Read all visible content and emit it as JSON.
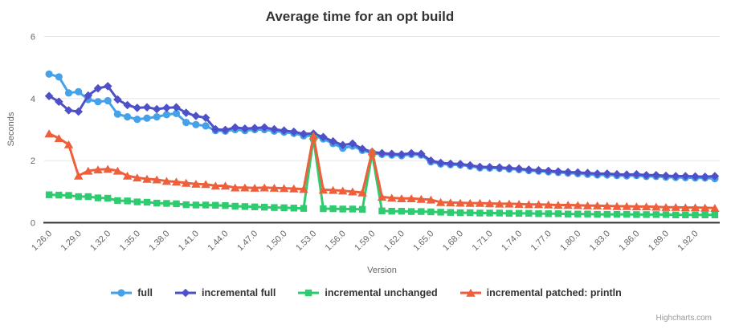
{
  "credits": "Highcharts.com",
  "colors": {
    "grid": "#e6e6e6",
    "axis_line": "#35353f",
    "tick_label": "#666666",
    "title_color": "#333333",
    "credit_color": "#999999"
  },
  "chart_data": {
    "type": "line",
    "title": "Average time for an opt build",
    "xlabel": "Version",
    "ylabel": "Seconds",
    "ylim": [
      0,
      6
    ],
    "yticks": [
      0,
      2,
      4,
      6
    ],
    "x_tick_every": 3,
    "grid": true,
    "legend_position": "bottom",
    "categories": [
      "1.26.0",
      "1.27.0",
      "1.28.0",
      "1.29.0",
      "1.30.0",
      "1.31.0",
      "1.32.0",
      "1.33.0",
      "1.34.0",
      "1.35.0",
      "1.36.0",
      "1.37.0",
      "1.38.0",
      "1.39.0",
      "1.40.0",
      "1.41.0",
      "1.42.0",
      "1.43.0",
      "1.44.0",
      "1.45.0",
      "1.46.0",
      "1.47.0",
      "1.48.0",
      "1.49.0",
      "1.50.0",
      "1.51.0",
      "1.52.0",
      "1.53.0",
      "1.54.0",
      "1.55.0",
      "1.56.0",
      "1.57.0",
      "1.58.0",
      "1.59.0",
      "1.60.0",
      "1.61.0",
      "1.62.0",
      "1.63.0",
      "1.64.0",
      "1.65.0",
      "1.66.0",
      "1.67.0",
      "1.68.0",
      "1.69.0",
      "1.70.0",
      "1.71.0",
      "1.72.0",
      "1.73.0",
      "1.74.0",
      "1.75.0",
      "1.76.0",
      "1.77.0",
      "1.78.0",
      "1.79.0",
      "1.80.0",
      "1.81.0",
      "1.82.0",
      "1.83.0",
      "1.84.0",
      "1.85.0",
      "1.86.0",
      "1.87.0",
      "1.88.0",
      "1.89.0",
      "1.90.0",
      "1.91.0",
      "1.92.0",
      "1.93.0",
      "1.94.0"
    ],
    "series": [
      {
        "name": "full",
        "marker": "circle",
        "color": "#45a2e8",
        "values": [
          4.79,
          4.7,
          4.18,
          4.22,
          3.97,
          3.9,
          3.93,
          3.5,
          3.41,
          3.33,
          3.37,
          3.41,
          3.48,
          3.52,
          3.23,
          3.16,
          3.12,
          2.97,
          2.95,
          3.0,
          2.97,
          3.0,
          3.0,
          2.95,
          2.92,
          2.88,
          2.8,
          2.8,
          2.7,
          2.55,
          2.4,
          2.47,
          2.33,
          2.24,
          2.2,
          2.18,
          2.16,
          2.2,
          2.18,
          1.96,
          1.89,
          1.87,
          1.86,
          1.82,
          1.77,
          1.76,
          1.75,
          1.73,
          1.71,
          1.68,
          1.66,
          1.64,
          1.62,
          1.6,
          1.58,
          1.56,
          1.54,
          1.54,
          1.52,
          1.51,
          1.52,
          1.49,
          1.49,
          1.47,
          1.46,
          1.45,
          1.44,
          1.44,
          1.42
        ]
      },
      {
        "name": "incremental full",
        "marker": "diamond",
        "color": "#4e50c8",
        "values": [
          4.08,
          3.9,
          3.62,
          3.58,
          4.1,
          4.33,
          4.4,
          3.97,
          3.79,
          3.7,
          3.72,
          3.66,
          3.7,
          3.72,
          3.54,
          3.44,
          3.38,
          3.01,
          2.99,
          3.07,
          3.03,
          3.05,
          3.07,
          3.01,
          2.97,
          2.93,
          2.86,
          2.87,
          2.76,
          2.62,
          2.5,
          2.55,
          2.38,
          2.28,
          2.24,
          2.22,
          2.2,
          2.24,
          2.22,
          2.0,
          1.93,
          1.9,
          1.89,
          1.85,
          1.8,
          1.79,
          1.78,
          1.76,
          1.74,
          1.71,
          1.69,
          1.67,
          1.65,
          1.63,
          1.62,
          1.6,
          1.58,
          1.58,
          1.56,
          1.55,
          1.56,
          1.53,
          1.53,
          1.51,
          1.5,
          1.5,
          1.49,
          1.48,
          1.5
        ]
      },
      {
        "name": "incremental unchanged",
        "marker": "square",
        "color": "#2fcb70",
        "values": [
          0.9,
          0.89,
          0.88,
          0.84,
          0.84,
          0.8,
          0.79,
          0.71,
          0.7,
          0.67,
          0.66,
          0.63,
          0.62,
          0.61,
          0.58,
          0.57,
          0.57,
          0.56,
          0.55,
          0.53,
          0.52,
          0.51,
          0.5,
          0.49,
          0.48,
          0.47,
          0.46,
          2.72,
          0.45,
          0.45,
          0.44,
          0.44,
          0.43,
          2.23,
          0.38,
          0.37,
          0.37,
          0.36,
          0.36,
          0.35,
          0.34,
          0.33,
          0.32,
          0.32,
          0.31,
          0.31,
          0.31,
          0.3,
          0.3,
          0.3,
          0.29,
          0.29,
          0.29,
          0.28,
          0.28,
          0.28,
          0.27,
          0.27,
          0.27,
          0.27,
          0.26,
          0.26,
          0.26,
          0.26,
          0.25,
          0.25,
          0.25,
          0.25,
          0.25
        ]
      },
      {
        "name": "incremental patched: println",
        "marker": "triangle",
        "color": "#ee5f3b",
        "values": [
          2.87,
          2.72,
          2.52,
          1.51,
          1.67,
          1.71,
          1.73,
          1.67,
          1.51,
          1.45,
          1.41,
          1.39,
          1.34,
          1.32,
          1.28,
          1.25,
          1.24,
          1.19,
          1.19,
          1.13,
          1.13,
          1.12,
          1.13,
          1.12,
          1.11,
          1.1,
          1.08,
          2.8,
          1.06,
          1.05,
          1.03,
          1.0,
          0.97,
          2.3,
          0.83,
          0.8,
          0.78,
          0.78,
          0.76,
          0.74,
          0.66,
          0.65,
          0.64,
          0.63,
          0.63,
          0.62,
          0.61,
          0.61,
          0.6,
          0.59,
          0.59,
          0.58,
          0.57,
          0.57,
          0.56,
          0.55,
          0.55,
          0.54,
          0.53,
          0.53,
          0.52,
          0.52,
          0.51,
          0.5,
          0.5,
          0.49,
          0.49,
          0.48,
          0.47
        ]
      }
    ]
  }
}
